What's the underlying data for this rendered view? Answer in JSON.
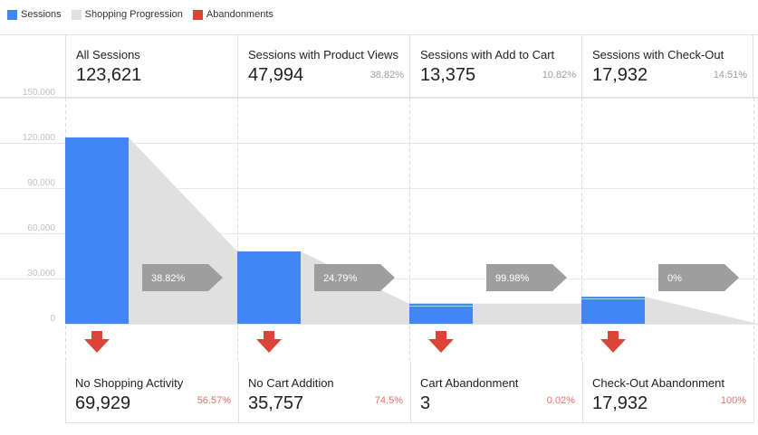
{
  "legend": {
    "sessions": {
      "label": "Sessions",
      "color": "#4285f4"
    },
    "progression": {
      "label": "Shopping Progression",
      "color": "#e0e0e0"
    },
    "abandonments": {
      "label": "Abandonments",
      "color": "#db4437"
    }
  },
  "chart_data": {
    "type": "bar",
    "title": "",
    "xlabel": "",
    "ylabel": "",
    "ylim": [
      0,
      150000
    ],
    "y_ticks": [
      0,
      30000,
      60000,
      90000,
      120000,
      150000
    ],
    "y_tick_labels": [
      "0",
      "30,000",
      "60,000",
      "90,000",
      "120,000",
      "150,000"
    ],
    "categories": [
      "All Sessions",
      "Sessions with Product Views",
      "Sessions with Add to Cart",
      "Sessions with Check-Out"
    ],
    "series": [
      {
        "name": "Sessions",
        "values": [
          123621,
          47994,
          13375,
          17932
        ]
      }
    ],
    "progression_ends": [
      47994,
      13375,
      13375,
      0
    ],
    "progression_rates": [
      "38.82%",
      "24.79%",
      "99.98%",
      "0%"
    ]
  },
  "stages": [
    {
      "label": "All Sessions",
      "value": "123,621",
      "pct": ""
    },
    {
      "label": "Sessions with Product Views",
      "value": "47,994",
      "pct": "38.82%"
    },
    {
      "label": "Sessions with Add to Cart",
      "value": "13,375",
      "pct": "10.82%"
    },
    {
      "label": "Sessions with Check-Out",
      "value": "17,932",
      "pct": "14.51%"
    }
  ],
  "abandonments": [
    {
      "label": "No Shopping Activity",
      "value": "69,929",
      "pct": "56.57%"
    },
    {
      "label": "No Cart Addition",
      "value": "35,757",
      "pct": "74.5%"
    },
    {
      "label": "Cart Abandonment",
      "value": "3",
      "pct": "0.02%"
    },
    {
      "label": "Check-Out Abandonment",
      "value": "17,932",
      "pct": "100%"
    }
  ]
}
